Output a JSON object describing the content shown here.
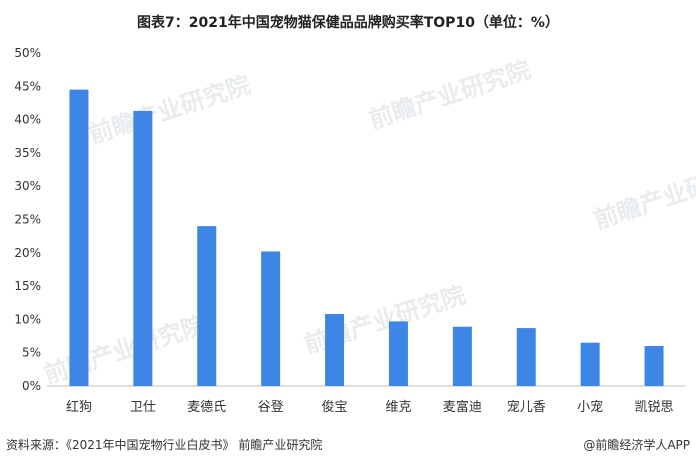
{
  "title": "图表7：2021年中国宠物猫保健品品牌购买率TOP10（单位：%）",
  "watermark": "前瞻产业研究院",
  "footer": {
    "source": "资料来源：《2021年中国宠物行业白皮书》 前瞻产业研究院",
    "credit": "@前瞻经济学人APP"
  },
  "colors": {
    "bar": "#3e86e6",
    "axis": "#bfbfbf",
    "text": "#333333"
  },
  "chart_data": {
    "type": "bar",
    "categories": [
      "红狗",
      "卫仕",
      "麦德氏",
      "谷登",
      "俊宝",
      "维克",
      "麦富迪",
      "宠儿香",
      "小宠",
      "凯锐思"
    ],
    "values": [
      44.5,
      41.3,
      24.0,
      20.2,
      10.8,
      9.7,
      8.9,
      8.7,
      6.5,
      6.0
    ],
    "yticks": [
      "0%",
      "5%",
      "10%",
      "15%",
      "20%",
      "25%",
      "30%",
      "35%",
      "40%",
      "45%",
      "50%"
    ],
    "ylim": [
      0,
      50
    ],
    "grid": false
  }
}
